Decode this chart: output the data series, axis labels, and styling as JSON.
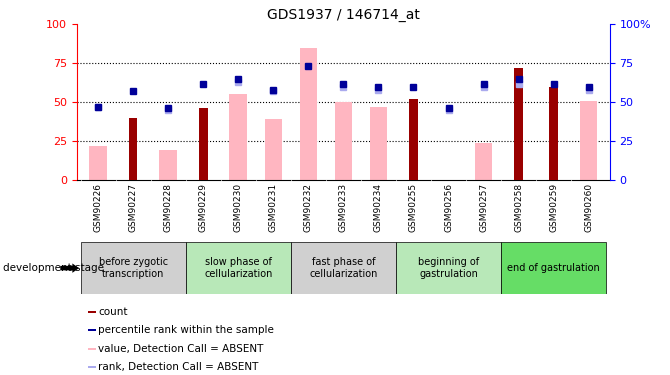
{
  "title": "GDS1937 / 146714_at",
  "samples": [
    "GSM90226",
    "GSM90227",
    "GSM90228",
    "GSM90229",
    "GSM90230",
    "GSM90231",
    "GSM90232",
    "GSM90233",
    "GSM90234",
    "GSM90255",
    "GSM90256",
    "GSM90257",
    "GSM90258",
    "GSM90259",
    "GSM90260"
  ],
  "red_bars": [
    0,
    40,
    0,
    46,
    0,
    0,
    0,
    0,
    0,
    52,
    0,
    0,
    72,
    60,
    0
  ],
  "pink_bars": [
    22,
    0,
    19,
    0,
    55,
    39,
    85,
    50,
    47,
    0,
    0,
    24,
    0,
    0,
    51
  ],
  "blue_squares": [
    47,
    57,
    46,
    62,
    65,
    58,
    73,
    62,
    60,
    60,
    46,
    62,
    65,
    62,
    60
  ],
  "light_blue_squares": [
    47,
    0,
    45,
    0,
    63,
    57,
    0,
    60,
    58,
    0,
    45,
    60,
    62,
    0,
    58
  ],
  "stages": [
    {
      "label": "before zygotic\ntranscription",
      "start": 0,
      "end": 3,
      "color": "#d0d0d0"
    },
    {
      "label": "slow phase of\ncellularization",
      "start": 3,
      "end": 6,
      "color": "#b8e8b8"
    },
    {
      "label": "fast phase of\ncellularization",
      "start": 6,
      "end": 9,
      "color": "#d0d0d0"
    },
    {
      "label": "beginning of\ngastrulation",
      "start": 9,
      "end": 12,
      "color": "#b8e8b8"
    },
    {
      "label": "end of gastrulation",
      "start": 12,
      "end": 15,
      "color": "#66dd66"
    }
  ],
  "ylim": [
    0,
    100
  ],
  "grid_lines": [
    25,
    50,
    75
  ],
  "red_color": "#990000",
  "pink_color": "#FFB6C1",
  "blue_color": "#000099",
  "light_blue_color": "#aaaaee",
  "tick_bg_color": "#cccccc",
  "legend_items": [
    {
      "color": "#990000",
      "label": "count"
    },
    {
      "color": "#000099",
      "label": "percentile rank within the sample"
    },
    {
      "color": "#FFB6C1",
      "label": "value, Detection Call = ABSENT"
    },
    {
      "color": "#aaaaee",
      "label": "rank, Detection Call = ABSENT"
    }
  ]
}
